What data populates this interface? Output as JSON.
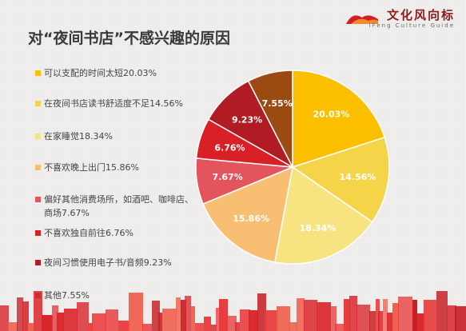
{
  "title": "对“夜间书店”不感兴趣的原因",
  "brand": {
    "name_cn": "文化风向标",
    "name_en": "iFeng Culture Guide"
  },
  "chart_data": {
    "type": "pie",
    "title": "对“夜间书店”不感兴趣的原因",
    "legend_position": "left",
    "slices": [
      {
        "label": "可以支配的时间太短20.03%",
        "value": 20.03,
        "value_label": "20.03%",
        "color": "#fbbf00"
      },
      {
        "label": "在夜间书店读书舒适度不足14.56%",
        "value": 14.56,
        "value_label": "14.56%",
        "color": "#f6d44a"
      },
      {
        "label": "在家睡觉18.34%",
        "value": 18.34,
        "value_label": "18.34%",
        "color": "#f7e37f"
      },
      {
        "label": "不喜欢晚上出门15.86%",
        "value": 15.86,
        "value_label": "15.86%",
        "color": "#f8bf73"
      },
      {
        "label": "偏好其他消费场所，如酒吧、咖啡店、商场7.67%",
        "value": 7.67,
        "value_label": "7.67%",
        "color": "#e4545c"
      },
      {
        "label": "不喜欢独自前往6.76%",
        "value": 6.76,
        "value_label": "6.76%",
        "color": "#d92027"
      },
      {
        "label": "夜间习惯使用电子书/音频9.23%",
        "value": 9.23,
        "value_label": "9.23%",
        "color": "#b11c24"
      },
      {
        "label": "其他7.55%",
        "value": 7.55,
        "value_label": "7.55%",
        "color": "#9b4a12"
      }
    ]
  }
}
